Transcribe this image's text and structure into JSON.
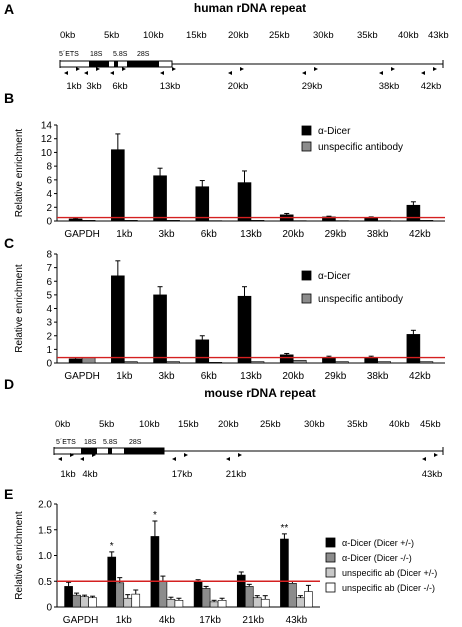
{
  "panel_letters": [
    "A",
    "B",
    "C",
    "D",
    "E"
  ],
  "human": {
    "title": "human rDNA repeat",
    "kb_labels": [
      "0kb",
      "5kb",
      "10kb",
      "15kb",
      "20kb",
      "25kb",
      "30kb",
      "35kb",
      "40kb",
      "43kb"
    ],
    "region_labels": [
      "5´ETS",
      "18S",
      "5.8S",
      "28S"
    ],
    "primer_labels": [
      "1kb",
      "3kb",
      "6kb",
      "13kb",
      "20kb",
      "29kb",
      "38kb",
      "42kb"
    ]
  },
  "mouse": {
    "title": "mouse rDNA repeat",
    "kb_labels": [
      "0kb",
      "5kb",
      "10kb",
      "15kb",
      "20kb",
      "25kb",
      "30kb",
      "35kb",
      "40kb",
      "45kb"
    ],
    "region_labels": [
      "5´ETS",
      "18S",
      "5.8S",
      "28S"
    ],
    "primer_labels": [
      "1kb",
      "4kb",
      "17kb",
      "21kb",
      "43kb"
    ]
  },
  "colors": {
    "black_series": "#000000",
    "grey_series": "#8c8c8c",
    "white_series": "#ffffff",
    "reference_line": "#d42020"
  },
  "chart_data": [
    {
      "panel": "B",
      "type": "bar",
      "ylabel": "Relative enrichment",
      "ylim": [
        0,
        14
      ],
      "yticks": [
        "0",
        "2",
        "4",
        "6",
        "8",
        "10",
        "12",
        "14"
      ],
      "categories": [
        "GAPDH",
        "1kb",
        "3kb",
        "6kb",
        "13kb",
        "20kb",
        "29kb",
        "38kb",
        "42kb"
      ],
      "reference_line": 0.5,
      "legend_position": "right",
      "series": [
        {
          "name": "α-Dicer",
          "color": "#000000",
          "values": [
            0.3,
            10.4,
            6.6,
            5.0,
            5.6,
            0.9,
            0.6,
            0.5,
            2.3
          ],
          "errors": [
            0.1,
            2.3,
            1.1,
            0.9,
            1.7,
            0.2,
            0.1,
            0.1,
            0.5
          ]
        },
        {
          "name": "unspecific antibody",
          "color": "#8c8c8c",
          "values": [
            0.1,
            0.1,
            0.1,
            0.05,
            0.1,
            0.05,
            0.05,
            0.05,
            0.1
          ],
          "errors": [
            0,
            0,
            0,
            0,
            0,
            0,
            0,
            0,
            0
          ]
        }
      ]
    },
    {
      "panel": "C",
      "type": "bar",
      "ylabel": "Relative enrichment",
      "ylim": [
        0,
        8
      ],
      "yticks": [
        "0",
        "1",
        "2",
        "3",
        "4",
        "5",
        "6",
        "7",
        "8"
      ],
      "categories": [
        "GAPDH",
        "1kb",
        "3kb",
        "6kb",
        "13kb",
        "20kb",
        "29kb",
        "38kb",
        "42kb"
      ],
      "reference_line": 0.4,
      "legend_position": "right",
      "series": [
        {
          "name": "α-Dicer",
          "color": "#000000",
          "values": [
            0.3,
            6.4,
            5.0,
            1.7,
            4.9,
            0.6,
            0.4,
            0.4,
            2.1
          ],
          "errors": [
            0.1,
            1.1,
            0.6,
            0.3,
            0.7,
            0.1,
            0.1,
            0.1,
            0.3
          ]
        },
        {
          "name": "unspecific antibody",
          "color": "#8c8c8c",
          "values": [
            0.4,
            0.1,
            0.1,
            0.05,
            0.1,
            0.2,
            0.1,
            0.1,
            0.1
          ],
          "errors": [
            0,
            0,
            0,
            0,
            0,
            0,
            0,
            0,
            0
          ]
        }
      ]
    },
    {
      "panel": "E",
      "type": "bar",
      "ylabel": "Relative enrichment",
      "ylim": [
        0,
        2.0
      ],
      "yticks": [
        "0",
        "0.5",
        "1.0",
        "1.5",
        "2.0"
      ],
      "categories": [
        "GAPDH",
        "1kb",
        "4kb",
        "17kb",
        "21kb",
        "43kb"
      ],
      "reference_line": 0.5,
      "legend_position": "right",
      "significance": [
        "",
        "*",
        "*",
        "",
        "",
        "**"
      ],
      "series": [
        {
          "name": "α-Dicer (Dicer +/-)",
          "color": "#000000",
          "values": [
            0.4,
            0.97,
            1.37,
            0.48,
            0.62,
            1.32
          ],
          "errors": [
            0.08,
            0.1,
            0.3,
            0.05,
            0.06,
            0.1
          ]
        },
        {
          "name": "α-Dicer (Dicer -/-)",
          "color": "#8c8c8c",
          "values": [
            0.23,
            0.47,
            0.5,
            0.36,
            0.4,
            0.46
          ],
          "errors": [
            0.04,
            0.1,
            0.1,
            0.04,
            0.04,
            0.04
          ]
        },
        {
          "name": "unspecific ab (Dicer +/-)",
          "color": "#c8c8c8",
          "values": [
            0.2,
            0.17,
            0.15,
            0.1,
            0.18,
            0.18
          ],
          "errors": [
            0.03,
            0.07,
            0.04,
            0.03,
            0.04,
            0.04
          ]
        },
        {
          "name": "unspecific ab (Dicer -/-)",
          "color": "#ffffff",
          "values": [
            0.18,
            0.25,
            0.13,
            0.13,
            0.15,
            0.3
          ],
          "errors": [
            0.03,
            0.08,
            0.04,
            0.04,
            0.07,
            0.12
          ]
        }
      ]
    }
  ]
}
